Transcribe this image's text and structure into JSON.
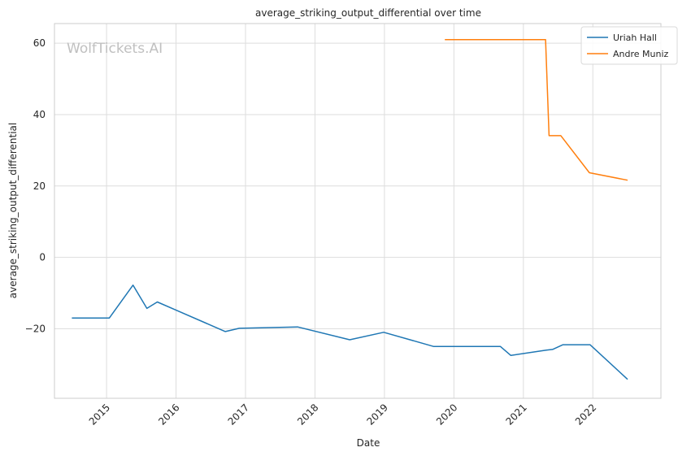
{
  "chart_data": {
    "type": "line",
    "title": "average_striking_output_differential over time",
    "xlabel": "Date",
    "ylabel": "average_striking_output_differential",
    "watermark": "WolfTickets.AI",
    "xlim": [
      2014.25,
      2022.98
    ],
    "ylim": [
      -39.5,
      65.5
    ],
    "x_ticks": [
      2015,
      2016,
      2017,
      2018,
      2019,
      2020,
      2021,
      2022
    ],
    "x_tick_labels": [
      "2015",
      "2016",
      "2017",
      "2018",
      "2019",
      "2020",
      "2021",
      "2022"
    ],
    "y_ticks": [
      -20,
      0,
      20,
      40,
      60
    ],
    "y_tick_labels": [
      "−20",
      "0",
      "20",
      "40",
      "60"
    ],
    "grid": true,
    "legend_position": "top-right",
    "series": [
      {
        "name": "Uriah Hall",
        "color": "#1f77b4",
        "x": [
          2014.5,
          2015.04,
          2015.38,
          2015.58,
          2015.73,
          2016.71,
          2016.91,
          2017.75,
          2018.5,
          2018.99,
          2019.71,
          2020.67,
          2020.82,
          2021.33,
          2021.42,
          2021.57,
          2021.96,
          2022.5
        ],
        "y": [
          -17,
          -17,
          -7.8,
          -14.3,
          -12.5,
          -20.8,
          -19.9,
          -19.5,
          -23.1,
          -21,
          -25,
          -25,
          -27.5,
          -26,
          -25.8,
          -24.5,
          -24.5,
          -34.2
        ]
      },
      {
        "name": "Andre Muniz",
        "color": "#ff7f0e",
        "x": [
          2019.87,
          2021.32,
          2021.37,
          2021.54,
          2021.95,
          2022.5
        ],
        "y": [
          61,
          61,
          34.1,
          34.1,
          23.7,
          21.6
        ]
      }
    ]
  }
}
